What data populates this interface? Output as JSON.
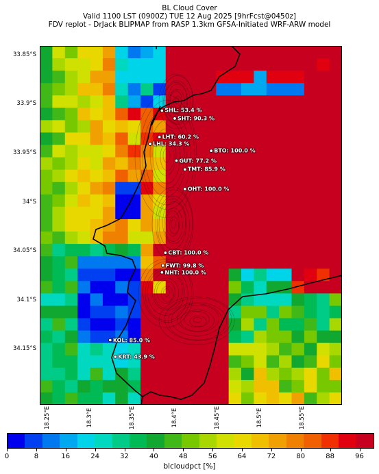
{
  "header": {
    "line1": "BL Cloud Cover",
    "line2": "Valid 1100 LST (0900Z) TUE 12 Aug 2025 [9hrFcst@0450z]",
    "line3": "FDV replot - DrJack BLIPMAP from RASP 1.3km GFSA-Initiated WRF-ARW model"
  },
  "map": {
    "lat_ticks": [
      {
        "value": -33.85,
        "label": "33.85°S"
      },
      {
        "value": -33.9,
        "label": "33.9°S"
      },
      {
        "value": -33.95,
        "label": "33.95°S"
      },
      {
        "value": -34.0,
        "label": "34°S"
      },
      {
        "value": -34.05,
        "label": "34.05°S"
      },
      {
        "value": -34.1,
        "label": "34.1°S"
      },
      {
        "value": -34.15,
        "label": "34.15°S"
      }
    ],
    "lon_ticks": [
      {
        "value": 18.25,
        "label": "18.25°E"
      },
      {
        "value": 18.3,
        "label": "18.3°E"
      },
      {
        "value": 18.35,
        "label": "18.35°E"
      },
      {
        "value": 18.4,
        "label": "18.4°E"
      },
      {
        "value": 18.45,
        "label": "18.45°E"
      },
      {
        "value": 18.5,
        "label": "18.5°E"
      },
      {
        "value": 18.55,
        "label": "18.55°E"
      }
    ],
    "lon_range": [
      18.241,
      18.597
    ],
    "lat_range": [
      -34.207,
      -33.841
    ],
    "stations": [
      {
        "id": "SHL",
        "label": "SHL: 53.4 %",
        "value": 53.4,
        "lon": 18.385,
        "lat": -33.907
      },
      {
        "id": "SHT",
        "label": "SHT: 90.3 %",
        "lon": 18.4,
        "lat": -33.915,
        "value": 90.3
      },
      {
        "id": "LHT",
        "label": "LHT: 60.2 %",
        "lon": 18.382,
        "lat": -33.934,
        "value": 60.2
      },
      {
        "id": "LHL",
        "label": "LHL: 34.3 %",
        "lon": 18.371,
        "lat": -33.941,
        "value": 34.3
      },
      {
        "id": "BTO",
        "label": "BTO: 100.0 %",
        "lon": 18.443,
        "lat": -33.948,
        "value": 100.0
      },
      {
        "id": "GUT",
        "label": "GUT: 77.2 %",
        "lon": 18.402,
        "lat": -33.958,
        "value": 77.2
      },
      {
        "id": "TMT",
        "label": "TMT: 85.9 %",
        "lon": 18.412,
        "lat": -33.967,
        "value": 85.9
      },
      {
        "id": "OHT",
        "label": "OHT: 100.0 %",
        "lon": 18.412,
        "lat": -33.987,
        "value": 100.0
      },
      {
        "id": "CBT",
        "label": "CBT: 100.0 %",
        "lon": 18.389,
        "lat": -34.052,
        "value": 100.0
      },
      {
        "id": "FWT",
        "label": "FWT: 99.8 %",
        "lon": 18.386,
        "lat": -34.065,
        "value": 99.8
      },
      {
        "id": "NHT",
        "label": "NHT: 100.0 %",
        "lon": 18.385,
        "lat": -34.072,
        "value": 100.0
      },
      {
        "id": "KOL",
        "label": "KOL: 85.0 %",
        "lon": 18.324,
        "lat": -34.141,
        "value": 85.0
      },
      {
        "id": "KRT",
        "label": "KRT: 43.9 %",
        "lon": 18.33,
        "lat": -34.158,
        "value": 43.9
      }
    ]
  },
  "colorbar": {
    "label": "blcloudpct [%]",
    "ticks": [
      "0",
      "8",
      "16",
      "24",
      "32",
      "40",
      "48",
      "56",
      "64",
      "72",
      "80",
      "88",
      "96"
    ],
    "min": 0,
    "max": 100,
    "colors": [
      "#0000ee",
      "#0040f0",
      "#0078f0",
      "#00a8f0",
      "#00d4e8",
      "#00d8c0",
      "#00cc88",
      "#00bb55",
      "#10a830",
      "#40b818",
      "#78c800",
      "#a8d800",
      "#d0e000",
      "#e8d800",
      "#f0c000",
      "#f0a000",
      "#f08000",
      "#f06000",
      "#f03000",
      "#e00010",
      "#c80020"
    ]
  }
}
